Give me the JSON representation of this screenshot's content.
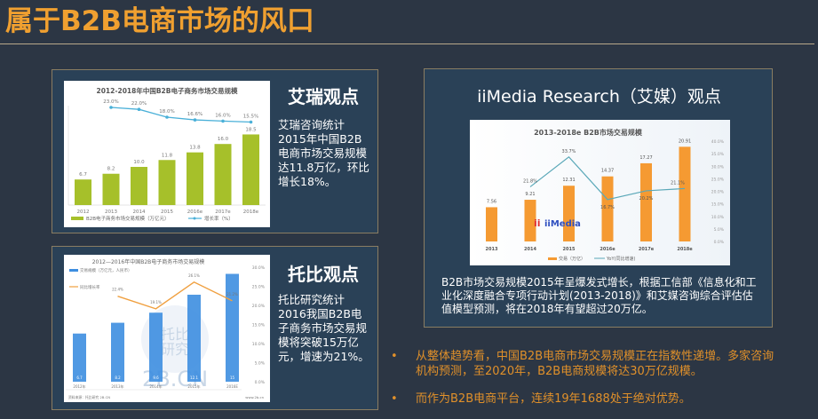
{
  "page": {
    "title": "属于B2B电商市场的风口",
    "accent_color": "#f0a030"
  },
  "panels": {
    "iresearch": {
      "heading": "艾瑞观点",
      "text": "艾瑞咨询统计2015年中国B2B电商市场交易规模达11.8万亿，环比增长18%。"
    },
    "tuobi": {
      "heading": "托比观点",
      "text": "托比研究统计2016我国B2B电子商务市场交易规模将突破15万亿元，增速为21%。"
    },
    "iimedia": {
      "heading": "iiMedia Research（艾媒）观点",
      "text": "B2B市场交易规模2015年呈爆发式增长，根据工信部《信息化和工业化深度融合专项行动计划(2013-2018)》和艾媒咨询综合评估估值模型预测，将在2018年有望超过20万亿。"
    }
  },
  "bullets": [
    "从整体趋势看，中国B2B电商市场交易规模正在指数性递增。多家咨询机构预测，至2020年，B2B电商规模将达30万亿规模。",
    "而作为B2B电商平台，连续19年1688处于绝对优势。"
  ],
  "chart_data": [
    {
      "type": "bar",
      "title": "2012-2018年中国B2B电子商务市场交易规模",
      "categories": [
        "2012",
        "2013",
        "2014",
        "2015",
        "2016e",
        "2017e",
        "2018e"
      ],
      "series": [
        {
          "name": "B2B电子商务市场交易规模（万亿元）",
          "type": "bar",
          "color": "#a6c02a",
          "values": [
            6.7,
            8.2,
            10.0,
            11.8,
            13.8,
            16.0,
            18.5
          ]
        },
        {
          "name": "增长率（%）",
          "type": "line",
          "color": "#4ab0d8",
          "values": [
            null,
            23.0,
            22.0,
            18.0,
            16.6,
            16.0,
            15.5
          ]
        }
      ],
      "line_labels": [
        "",
        "23.0%",
        "22.0%",
        "18.0%",
        "16.6%",
        "16.0%",
        "15.5%"
      ]
    },
    {
      "type": "bar",
      "title": "2012—2016年中国B2B电子商务市场交易规模",
      "categories": [
        "2012年",
        "2013年",
        "2014年",
        "2015年",
        "2016E"
      ],
      "series": [
        {
          "name": "交易规模（万亿元，人民币）",
          "type": "bar",
          "color": "#3d8ee0",
          "values": [
            6.7,
            8.2,
            9.6,
            12.1,
            15
          ]
        },
        {
          "name": "同比增长率",
          "type": "line",
          "color": "#f0a040",
          "values": [
            null,
            22.4,
            19.1,
            26.1,
            21.2
          ]
        }
      ],
      "y2_ticks": [
        "0.0%",
        "5.0%",
        "10.0%",
        "15.0%",
        "20.0%",
        "25.0%",
        "30.0%"
      ],
      "watermark": "托比研究 2B.CN",
      "source_right": "www.2b.cn"
    },
    {
      "type": "bar",
      "title": "2013-2018e B2B市场交易规模",
      "categories": [
        "2013",
        "2014",
        "2015",
        "2016e",
        "2017e",
        "2018e"
      ],
      "series": [
        {
          "name": "交易（万亿）",
          "type": "bar",
          "color": "#f59a32",
          "values": [
            7.56,
            9.21,
            12.31,
            14.37,
            17.27,
            20.91
          ]
        },
        {
          "name": "YoY(同比增速)",
          "type": "line",
          "color": "#5aa8b8",
          "values": [
            null,
            21.8,
            33.7,
            16.7,
            20.2,
            21.1
          ]
        }
      ],
      "y2_ticks": [
        "0.0%",
        "5.0%",
        "10.0%",
        "15.0%",
        "20.0%",
        "25.0%",
        "30.0%",
        "35.0%",
        "40.0%"
      ],
      "y2_range": [
        0,
        40
      ],
      "watermark": "iiMedia"
    }
  ]
}
